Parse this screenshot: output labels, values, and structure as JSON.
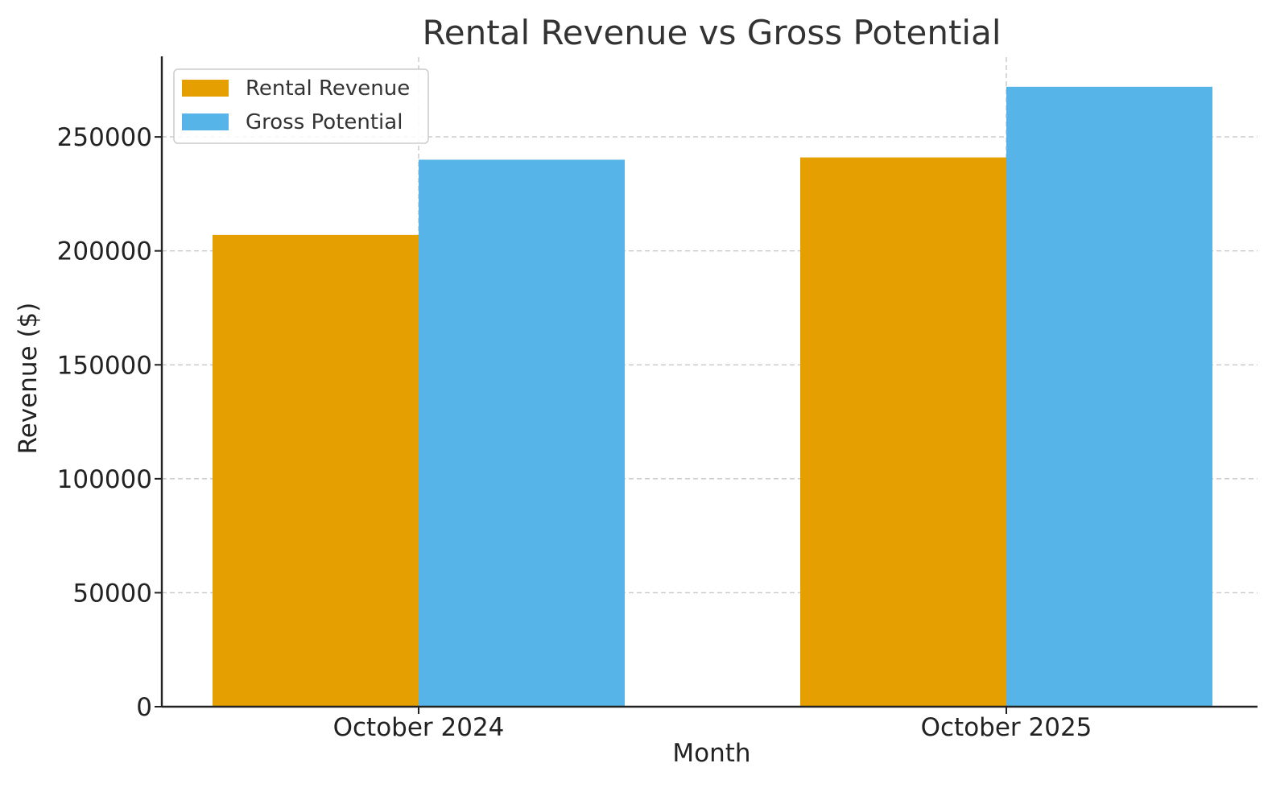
{
  "chart_data": {
    "type": "bar",
    "title": "Rental Revenue vs Gross Potential",
    "xlabel": "Month",
    "ylabel": "Revenue ($)",
    "categories": [
      "October 2024",
      "October 2025"
    ],
    "series": [
      {
        "name": "Rental Revenue",
        "values": [
          207000,
          241000
        ],
        "color": "#E69F00"
      },
      {
        "name": "Gross Potential",
        "values": [
          240000,
          272000
        ],
        "color": "#56B4E9"
      }
    ],
    "ylim": [
      0,
      285000
    ],
    "yticks": [
      0,
      50000,
      100000,
      150000,
      200000,
      250000
    ],
    "ytick_labels": [
      "0",
      "50000",
      "100000",
      "150000",
      "200000",
      "250000"
    ],
    "grid": true,
    "legend_position": "top-left"
  }
}
